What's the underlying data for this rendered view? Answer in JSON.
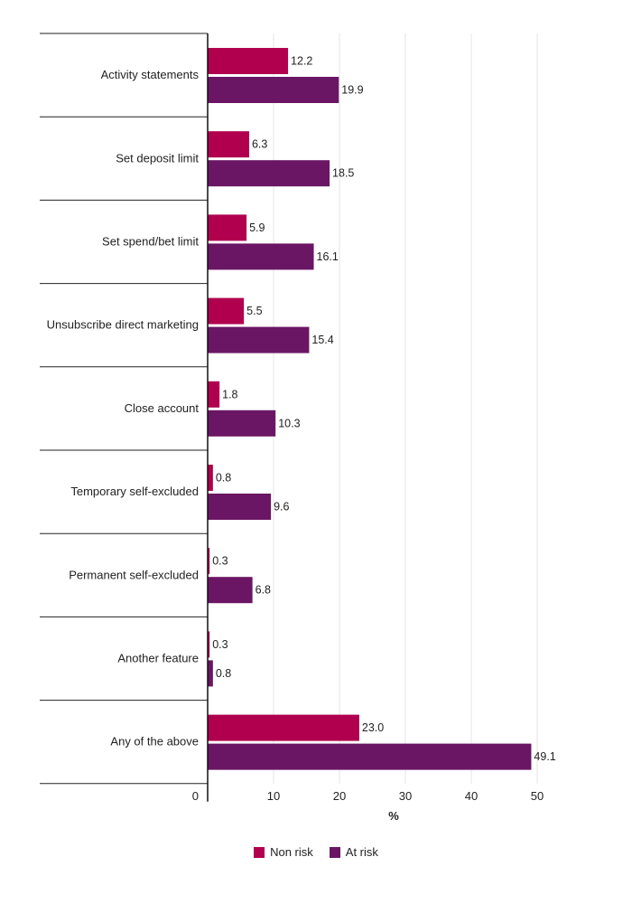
{
  "chart_data": {
    "type": "bar",
    "orientation": "horizontal",
    "categories": [
      "Activity statements",
      "Set deposit limit",
      "Set spend/bet limit",
      "Unsubscribe direct marketing",
      "Close account",
      "Temporary self-excluded",
      "Permanent self-excluded",
      "Another feature",
      "Any of the above"
    ],
    "series": [
      {
        "name": "Non risk",
        "color": "#b0004e",
        "values": [
          12.2,
          6.3,
          5.9,
          5.5,
          1.8,
          0.8,
          0.3,
          0.3,
          23.0
        ],
        "labels": [
          "12.2",
          "6.3",
          "5.9",
          "5.5",
          "1.8",
          "0.8",
          "0.3",
          "0.3",
          "23.0"
        ]
      },
      {
        "name": "At risk",
        "color": "#6a1664",
        "values": [
          19.9,
          18.5,
          16.1,
          15.4,
          10.3,
          9.6,
          6.8,
          0.8,
          49.1
        ],
        "labels": [
          "19.9",
          "18.5",
          "16.1",
          "15.4",
          "10.3",
          "9.6",
          "6.8",
          "0.8",
          "49.1"
        ]
      }
    ],
    "xlim": [
      0,
      50
    ],
    "xticks": [
      "0",
      "10",
      "20",
      "30",
      "40",
      "50"
    ],
    "xlabel": "%",
    "ylabel": "",
    "title": "",
    "grid": true,
    "legend_position": "bottom-center"
  }
}
